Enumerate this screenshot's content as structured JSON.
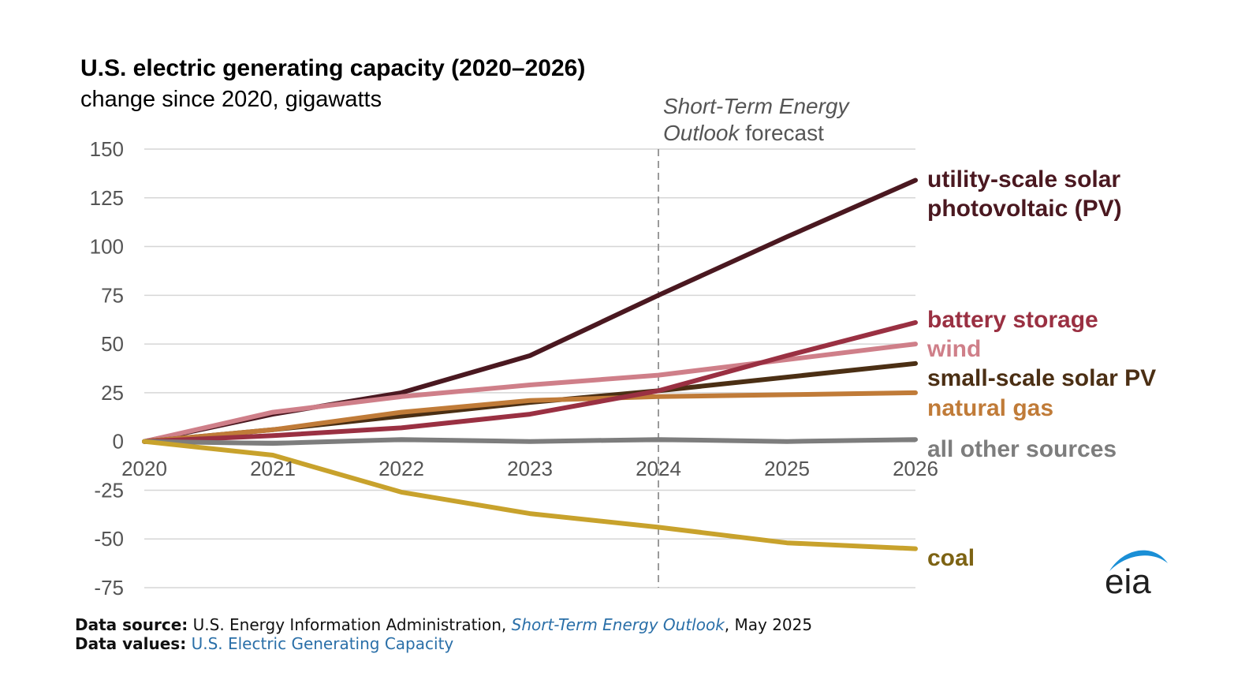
{
  "chart_data": {
    "type": "line",
    "title": "U.S. electric generating capacity (2020–2026)",
    "subtitle": "change since 2020, gigawatts",
    "x": [
      "2020",
      "2021",
      "2022",
      "2023",
      "2024",
      "2025",
      "2026"
    ],
    "ylim": [
      -75,
      150
    ],
    "yticks": [
      150,
      125,
      100,
      75,
      50,
      25,
      0,
      -25,
      -50,
      -75
    ],
    "grid": true,
    "forecast_line": {
      "x": "2024",
      "label_part1": "Short-Term Energy",
      "label_part2_italic": "Outlook",
      "label_part2_rest": " forecast"
    },
    "series": [
      {
        "name": "utility-scale solar photovoltaic (PV)",
        "label_lines": [
          "utility-scale solar",
          "photovoltaic (PV)"
        ],
        "color": "#4a1820",
        "values": [
          0,
          14,
          25,
          44,
          75,
          105,
          134
        ]
      },
      {
        "name": "wind",
        "label_lines": [
          "wind"
        ],
        "color": "#cf7f89",
        "values": [
          0,
          15,
          23,
          29,
          34,
          42,
          50
        ]
      },
      {
        "name": "small-scale solar PV",
        "label_lines": [
          "small-scale solar PV"
        ],
        "color": "#4b2f14",
        "values": [
          0,
          6,
          13,
          20,
          26,
          33,
          40
        ]
      },
      {
        "name": "natural gas",
        "label_lines": [
          "natural gas"
        ],
        "color": "#c07b38",
        "values": [
          0,
          6,
          15,
          21,
          23,
          24,
          25
        ]
      },
      {
        "name": "battery storage",
        "label_lines": [
          "battery storage"
        ],
        "color": "#9a3042",
        "values": [
          0,
          3,
          7,
          14,
          26,
          44,
          61
        ]
      },
      {
        "name": "all other sources",
        "label_lines": [
          "all other sources"
        ],
        "color": "#7d7d7d",
        "values": [
          0,
          -1,
          1,
          0,
          1,
          0,
          1
        ]
      },
      {
        "name": "coal",
        "label_lines": [
          "coal"
        ],
        "color": "#c8a22c",
        "label_color": "#7d6313",
        "values": [
          0,
          -7,
          -26,
          -37,
          -44,
          -52,
          -55
        ]
      }
    ]
  },
  "footer": {
    "source_label": "Data source:",
    "source_text_1": " U.S. Energy Information Administration, ",
    "source_link": "Short-Term Energy Outlook",
    "source_text_2": ", May 2025",
    "values_label": "Data values:",
    "values_link": " U.S. Electric Generating Capacity"
  },
  "logo": {
    "text": "eia"
  }
}
